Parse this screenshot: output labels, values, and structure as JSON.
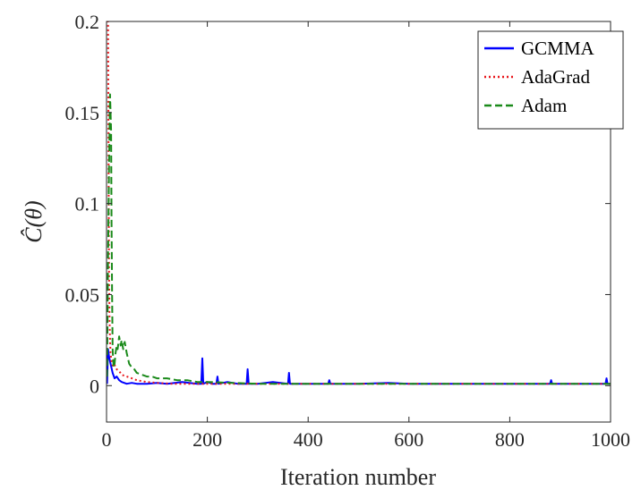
{
  "chart_data": {
    "type": "line",
    "title": "",
    "xlabel": "Iteration number",
    "ylabel": "Ĉ(θ)",
    "xlim": [
      0,
      1000
    ],
    "ylim": [
      -0.02,
      0.2
    ],
    "xticks": [
      0,
      200,
      400,
      600,
      800,
      1000
    ],
    "yticks": [
      0,
      0.05,
      0.1,
      0.15,
      0.2
    ],
    "xtick_labels": [
      "0",
      "200",
      "400",
      "600",
      "800",
      "1000"
    ],
    "ytick_labels": [
      "0",
      "0.05",
      "0.1",
      "0.15",
      "0.2"
    ],
    "grid": false,
    "legend_position": "top-right",
    "series": [
      {
        "name": "GCMMA",
        "color": "#0000ff",
        "style": "solid",
        "x": [
          1,
          3,
          5,
          8,
          12,
          16,
          20,
          25,
          30,
          40,
          50,
          60,
          80,
          100,
          120,
          150,
          180,
          188,
          190,
          192,
          200,
          210,
          218,
          220,
          222,
          240,
          260,
          278,
          280,
          282,
          300,
          330,
          360,
          362,
          364,
          380,
          420,
          440,
          442,
          444,
          500,
          560,
          600,
          700,
          800,
          880,
          882,
          884,
          950,
          990,
          992,
          994,
          1000
        ],
        "y": [
          0.001,
          0.02,
          0.016,
          0.012,
          0.007,
          0.004,
          0.005,
          0.003,
          0.002,
          0.001,
          0.0015,
          0.001,
          0.001,
          0.0015,
          0.001,
          0.002,
          0.001,
          0.001,
          0.015,
          0.001,
          0.002,
          0.001,
          0.001,
          0.005,
          0.001,
          0.002,
          0.001,
          0.001,
          0.009,
          0.001,
          0.001,
          0.002,
          0.001,
          0.007,
          0.001,
          0.001,
          0.001,
          0.001,
          0.003,
          0.001,
          0.001,
          0.0015,
          0.001,
          0.001,
          0.001,
          0.001,
          0.003,
          0.001,
          0.001,
          0.001,
          0.004,
          0.001,
          0.001
        ]
      },
      {
        "name": "AdaGrad",
        "color": "#e8161b",
        "style": "dotted",
        "x": [
          1,
          2,
          3,
          4,
          5,
          6,
          7,
          8,
          10,
          12,
          15,
          20,
          25,
          30,
          40,
          50,
          60,
          80,
          100,
          130,
          160,
          200,
          300,
          400,
          600,
          800,
          1000
        ],
        "y": [
          0.2,
          0.2,
          0.2,
          0.12,
          0.06,
          0.035,
          0.025,
          0.018,
          0.013,
          0.011,
          0.012,
          0.009,
          0.008,
          0.006,
          0.005,
          0.004,
          0.003,
          0.002,
          0.0015,
          0.001,
          0.001,
          0.001,
          0.001,
          0.001,
          0.001,
          0.001,
          0.001
        ]
      },
      {
        "name": "Adam",
        "color": "#1a8a1a",
        "style": "dashed",
        "x": [
          1,
          3,
          5,
          7,
          9,
          10,
          11,
          12,
          14,
          16,
          18,
          20,
          22,
          25,
          28,
          30,
          33,
          36,
          40,
          45,
          50,
          55,
          60,
          70,
          80,
          90,
          100,
          120,
          140,
          160,
          180,
          200,
          250,
          300,
          400,
          500,
          600,
          700,
          800,
          900,
          1000
        ],
        "y": [
          0.005,
          0.07,
          0.12,
          0.16,
          0.14,
          0.09,
          0.05,
          0.02,
          0.01,
          0.012,
          0.018,
          0.022,
          0.02,
          0.027,
          0.022,
          0.025,
          0.02,
          0.024,
          0.018,
          0.012,
          0.01,
          0.009,
          0.007,
          0.006,
          0.005,
          0.005,
          0.004,
          0.004,
          0.003,
          0.003,
          0.002,
          0.002,
          0.0015,
          0.001,
          0.001,
          0.001,
          0.001,
          0.001,
          0.001,
          0.001,
          0.001
        ]
      }
    ]
  }
}
